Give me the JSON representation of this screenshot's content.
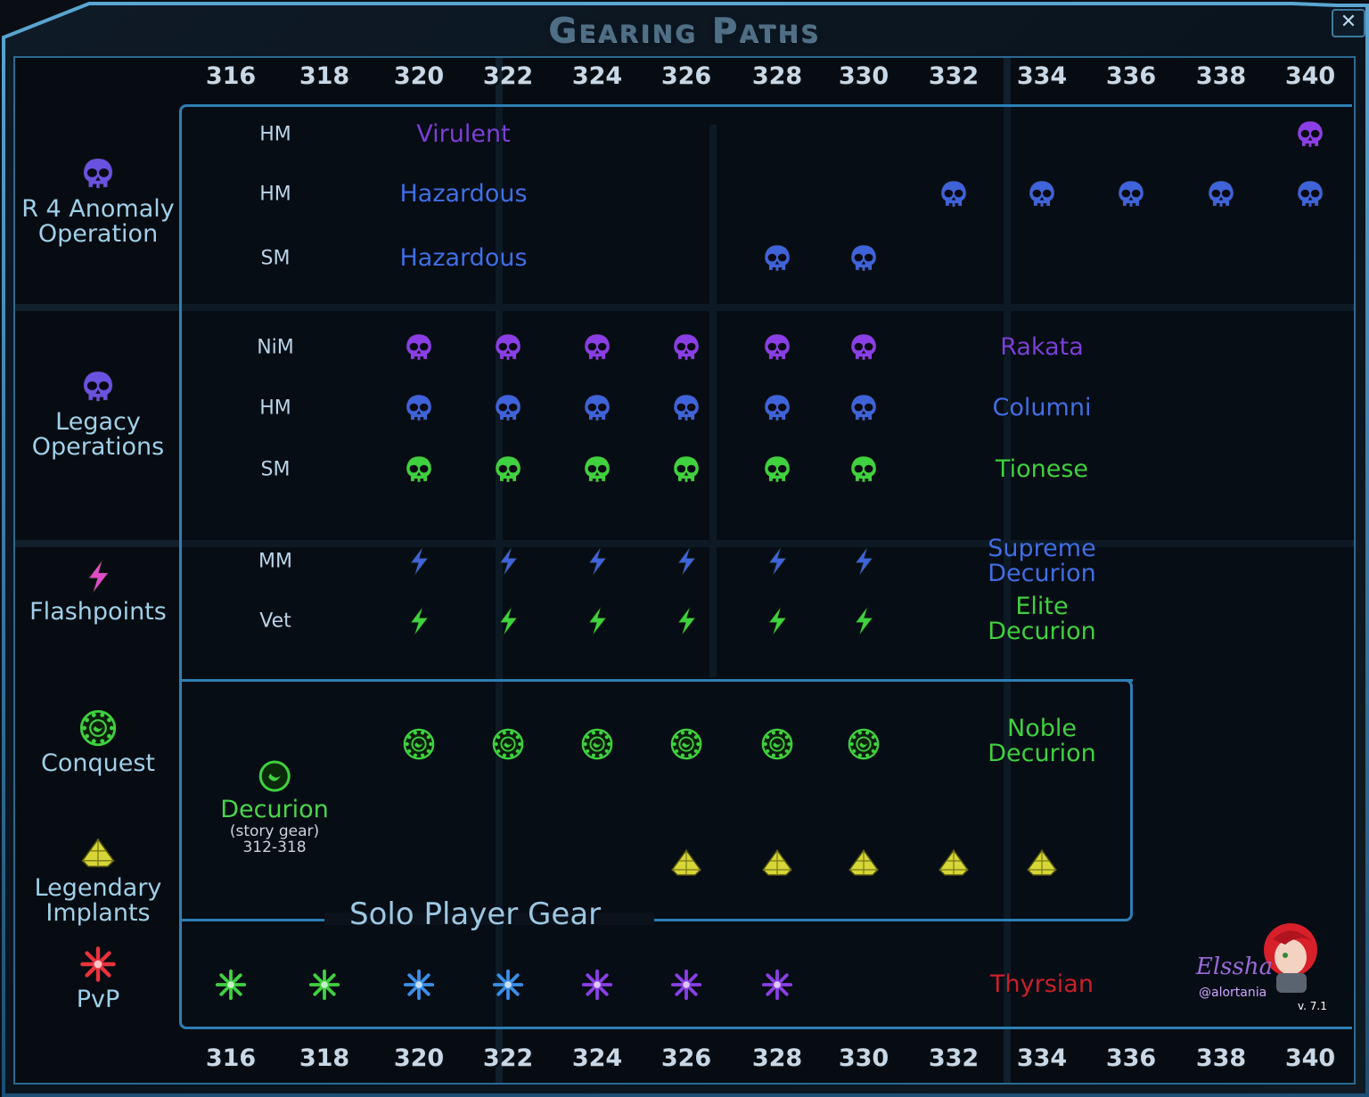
{
  "window": {
    "title": "Gearing Paths",
    "close_label": "✕"
  },
  "axis_ticks": [
    "316",
    "318",
    "320",
    "322",
    "324",
    "326",
    "328",
    "330",
    "332",
    "334",
    "336",
    "338",
    "340"
  ],
  "categories": [
    {
      "id": "r4",
      "label": "R 4 Anomaly Operation",
      "line1": "R 4 Anomaly",
      "line2": "Operation",
      "icon": "skull-icon",
      "color": "#6a52e0"
    },
    {
      "id": "legacy",
      "label": "Legacy Operations",
      "line1": "Legacy",
      "line2": "Operations",
      "icon": "skull-icon",
      "color": "#6a52e0"
    },
    {
      "id": "flashpoints",
      "label": "Flashpoints",
      "line1": "Flashpoints",
      "line2": "",
      "icon": "lightning-icon",
      "color": "#e04cc8"
    },
    {
      "id": "conquest",
      "label": "Conquest",
      "line1": "Conquest",
      "line2": "",
      "icon": "conquest-icon",
      "color": "#3fd13f"
    },
    {
      "id": "implants",
      "label": "Legendary Implants",
      "line1": "Legendary",
      "line2": "Implants",
      "icon": "implant-icon",
      "color": "#d6d636"
    },
    {
      "id": "pvp",
      "label": "PvP",
      "line1": "PvP",
      "line2": "",
      "icon": "pvp-star-icon",
      "color": "#e8323c"
    }
  ],
  "rows": [
    {
      "difficulty": "HM",
      "tier_line1": "Virulent",
      "tier_line2": "",
      "tier_color": "#7b3fd6",
      "icon": "skull-icon",
      "icon_color": "#8a3fe6",
      "levels": [
        "340"
      ]
    },
    {
      "difficulty": "HM",
      "tier_line1": "Hazardous",
      "tier_line2": "",
      "tier_color": "#3f6fe6",
      "icon": "skull-icon",
      "icon_color": "#3f63d8",
      "levels": [
        "332",
        "334",
        "336",
        "338",
        "340"
      ]
    },
    {
      "difficulty": "SM",
      "tier_line1": "Hazardous",
      "tier_line2": "",
      "tier_color": "#3f6fe6",
      "icon": "skull-icon",
      "icon_color": "#3f63d8",
      "levels": [
        "328",
        "330"
      ]
    },
    {
      "difficulty": "NiM",
      "tier_line1": "Rakata",
      "tier_line2": "",
      "tier_color": "#7b3fd6",
      "icon": "skull-icon",
      "icon_color": "#8a3fe6",
      "levels": [
        "320",
        "322",
        "324",
        "326",
        "328",
        "330"
      ]
    },
    {
      "difficulty": "HM",
      "tier_line1": "Columni",
      "tier_line2": "",
      "tier_color": "#3f6fe6",
      "icon": "skull-icon",
      "icon_color": "#3f63d8",
      "levels": [
        "320",
        "322",
        "324",
        "326",
        "328",
        "330"
      ]
    },
    {
      "difficulty": "SM",
      "tier_line1": "Tionese",
      "tier_line2": "",
      "tier_color": "#3fd13f",
      "icon": "skull-icon",
      "icon_color": "#3fd13f",
      "levels": [
        "320",
        "322",
        "324",
        "326",
        "328",
        "330"
      ]
    },
    {
      "difficulty": "MM",
      "tier_line1": "Supreme",
      "tier_line2": "Decurion",
      "tier_color": "#3f6fe6",
      "icon": "lightning-icon",
      "icon_color": "#3f63d8",
      "levels": [
        "320",
        "322",
        "324",
        "326",
        "328",
        "330"
      ]
    },
    {
      "difficulty": "Vet",
      "tier_line1": "Elite",
      "tier_line2": "Decurion",
      "tier_color": "#3fd13f",
      "icon": "lightning-icon",
      "icon_color": "#3fd13f",
      "levels": [
        "320",
        "322",
        "324",
        "326",
        "328",
        "330"
      ]
    },
    {
      "difficulty": "",
      "tier_line1": "Noble",
      "tier_line2": "Decurion",
      "tier_color": "#3fd13f",
      "icon": "conquest-icon",
      "icon_color": "#3fd13f",
      "levels": [
        "320",
        "322",
        "324",
        "326",
        "328",
        "330"
      ]
    },
    {
      "difficulty": "",
      "tier_line1": "",
      "tier_line2": "",
      "tier_color": "#d6d636",
      "icon": "implant-icon",
      "icon_color": "#d6d636",
      "levels": [
        "326",
        "328",
        "330",
        "332",
        "334"
      ]
    },
    {
      "difficulty": "",
      "tier_line1": "Thyrsian",
      "tier_line2": "",
      "tier_color": "#c8202a",
      "icon": "pvp-star-icon",
      "icon_colors": [
        "#3fd13f",
        "#3fd13f",
        "#3a8fe8",
        "#3a8fe8",
        "#8a3fe6",
        "#8a3fe6",
        "#8a3fe6"
      ],
      "levels": [
        "316",
        "318",
        "320",
        "322",
        "324",
        "326",
        "328"
      ]
    }
  ],
  "decurion": {
    "name": "Decurion",
    "sub1": "(story gear)",
    "sub2": "312-318",
    "icon": "decurion-icon"
  },
  "solo_label": "Solo Player Gear",
  "credit": {
    "author": "Elssha",
    "handle": "@alortania",
    "version": "v. 7.1"
  }
}
